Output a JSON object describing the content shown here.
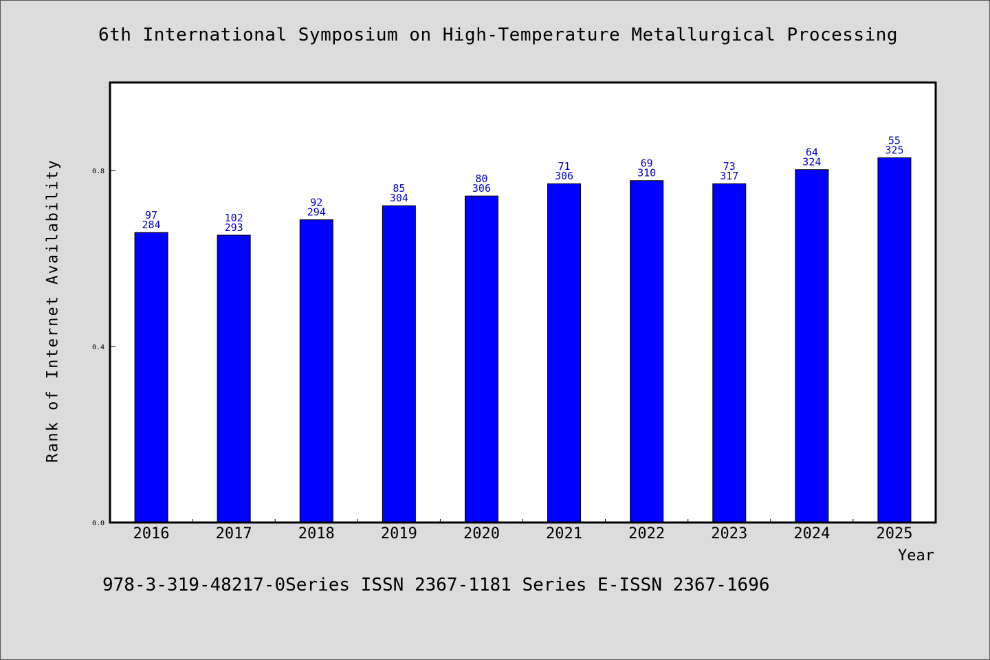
{
  "title": "6th International Symposium on High-Temperature Metallurgical Processing",
  "footer": "978-3-319-48217-0Series ISSN 2367-1181 Series E-ISSN 2367-1696",
  "colors": {
    "background": "#dcdcdc",
    "plot_background": "#ffffff",
    "bar": "#0000ff",
    "bar_label": "#0000cc"
  },
  "chart_data": {
    "type": "bar",
    "xlabel": "Year",
    "ylabel": "Rank of Internet Availability",
    "ylim": [
      0,
      1.0
    ],
    "yticks": [
      0.0,
      0.4,
      0.8
    ],
    "ytick_labels": [
      "0.0",
      "0.4",
      "0.8"
    ],
    "grid": false,
    "categories": [
      "2016",
      "2017",
      "2018",
      "2019",
      "2020",
      "2021",
      "2022",
      "2023",
      "2024",
      "2025"
    ],
    "values": [
      0.659,
      0.653,
      0.688,
      0.72,
      0.742,
      0.77,
      0.777,
      0.77,
      0.802,
      0.829
    ],
    "labels_top": [
      "97",
      "102",
      "92",
      "85",
      "80",
      "71",
      "69",
      "73",
      "64",
      "55"
    ],
    "labels_bottom": [
      "284",
      "293",
      "294",
      "304",
      "306",
      "306",
      "310",
      "317",
      "324",
      "325"
    ]
  }
}
